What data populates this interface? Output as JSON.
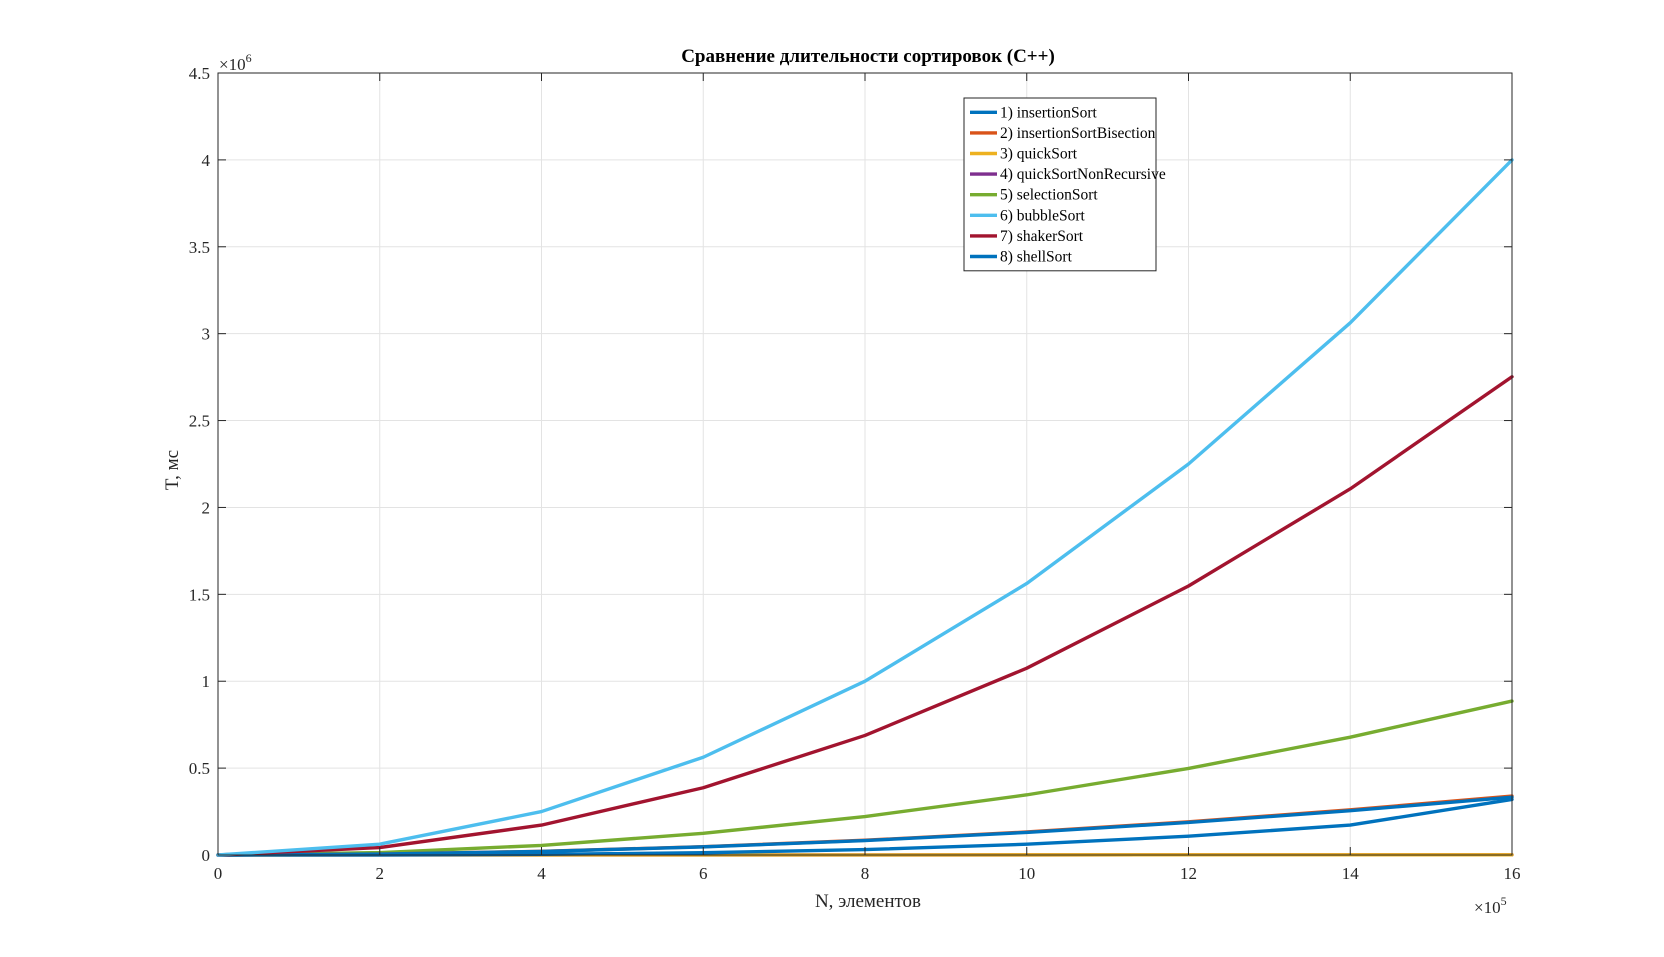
{
  "chart_data": {
    "type": "line",
    "title": "Сравнение длительности сортировок (C++)",
    "xlabel": "N, элементов",
    "ylabel": "T, мс",
    "xlim": [
      0,
      1600000
    ],
    "ylim": [
      0,
      4500000
    ],
    "x_exponent_label": {
      "base": "×10",
      "exp": "5"
    },
    "y_exponent_label": {
      "base": "×10",
      "exp": "6"
    },
    "x_ticks": [
      0,
      200000,
      400000,
      600000,
      800000,
      1000000,
      1200000,
      1400000,
      1600000
    ],
    "x_tick_labels": [
      "0",
      "2",
      "4",
      "6",
      "8",
      "10",
      "12",
      "14",
      "16"
    ],
    "y_ticks": [
      0,
      500000,
      1000000,
      1500000,
      2000000,
      2500000,
      3000000,
      3500000,
      4000000,
      4500000
    ],
    "y_tick_labels": [
      "0",
      "0.5",
      "1",
      "1.5",
      "2",
      "2.5",
      "3",
      "3.5",
      "4",
      "4.5"
    ],
    "grid": true,
    "legend_position": "top-right",
    "x": [
      0,
      200000,
      400000,
      600000,
      800000,
      1000000,
      1200000,
      1400000,
      1600000
    ],
    "series": [
      {
        "name": "1) insertionSort",
        "color": "#0072BD",
        "values": [
          0,
          5200,
          20800,
          46800,
          83200,
          130000,
          187200,
          254800,
          332800
        ]
      },
      {
        "name": "2) insertionSortBisection",
        "color": "#D95319",
        "values": [
          0,
          5300,
          21200,
          47700,
          84800,
          132500,
          190800,
          259700,
          339200
        ]
      },
      {
        "name": "3) quickSort",
        "color": "#EDB120",
        "values": [
          0,
          100,
          250,
          400,
          550,
          700,
          850,
          1000,
          1200
        ]
      },
      {
        "name": "4) quickSortNonRecursive",
        "color": "#7E2F8E",
        "values": [
          0,
          100,
          250,
          400,
          550,
          700,
          850,
          1000,
          1200
        ]
      },
      {
        "name": "5) selectionSort",
        "color": "#77AC30",
        "values": [
          0,
          13800,
          55300,
          124500,
          221400,
          346000,
          498200,
          678100,
          885700
        ]
      },
      {
        "name": "6) bubbleSort",
        "color": "#4DBEEE",
        "values": [
          0,
          62500,
          250000,
          562500,
          1000000,
          1562500,
          2250000,
          3062500,
          4000000
        ]
      },
      {
        "name": "7) shakerSort",
        "color": "#A2142F",
        "values": [
          0,
          43000,
          172000,
          387000,
          688000,
          1075000,
          1548000,
          2107000,
          2752000
        ]
      },
      {
        "name": "8) shellSort",
        "color": "#0072BD",
        "values": [
          0,
          600,
          4000,
          13000,
          31000,
          62000,
          108000,
          172000,
          320000
        ]
      }
    ]
  }
}
